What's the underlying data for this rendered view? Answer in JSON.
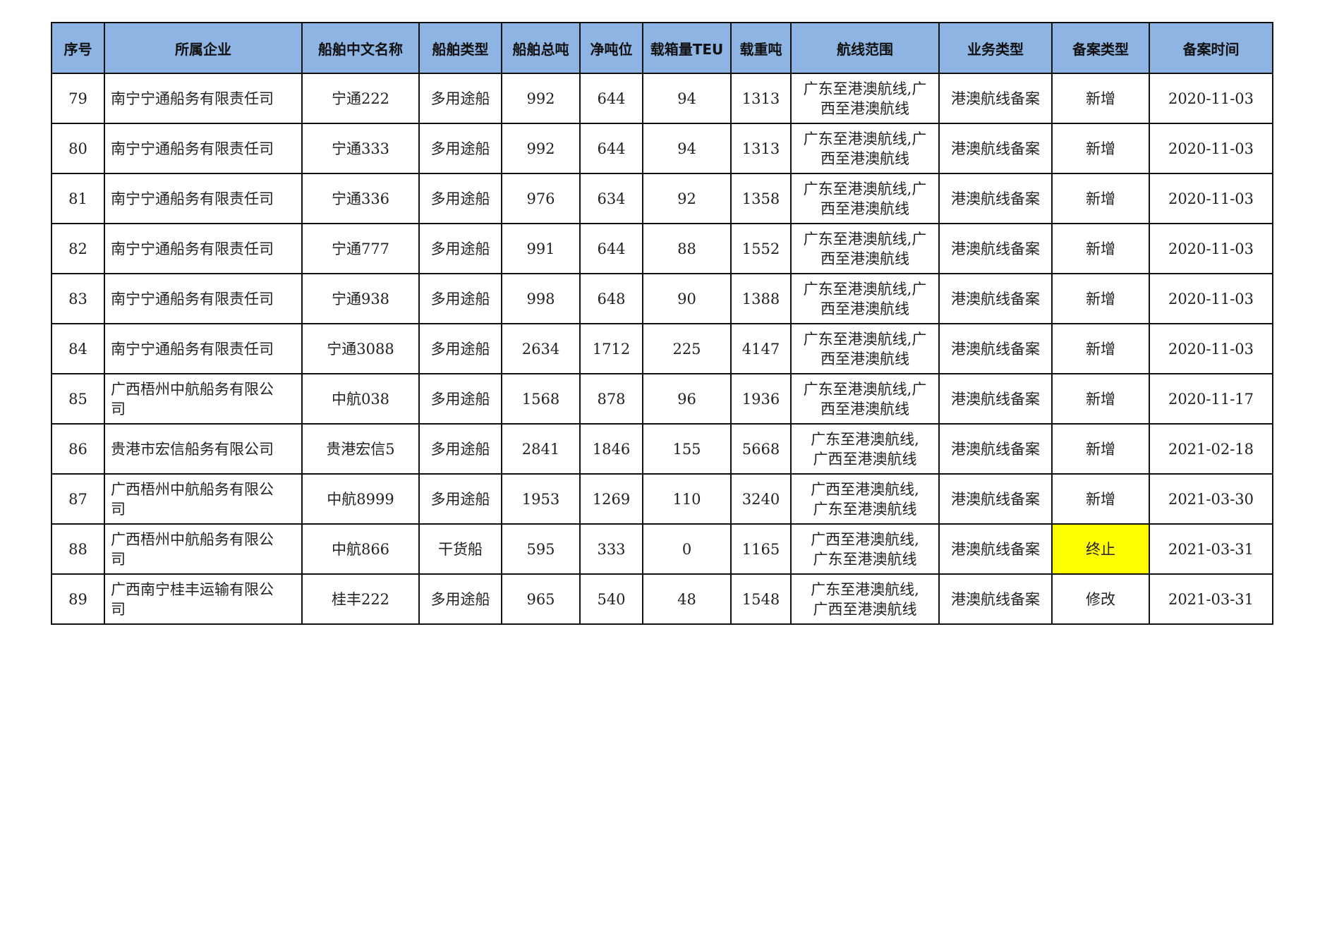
{
  "table": {
    "headers": [
      "序号",
      "所属企业",
      "船舶中文名称",
      "船舶类型",
      "船舶总吨",
      "净吨位",
      "载箱量TEU",
      "载重吨",
      "航线范围",
      "业务类型",
      "备案类型",
      "备案时间"
    ],
    "highlight_color": "#ffff00",
    "header_color": "#8db4e2",
    "rows": [
      {
        "cells": [
          "79",
          "南宁宁通船务有限责任司",
          "宁通222",
          "多用途船",
          "992",
          "644",
          "94",
          "1313",
          "广东至港澳航线,广\n西至港澳航线",
          "港澳航线备案",
          "新增",
          "2020-11-03"
        ]
      },
      {
        "cells": [
          "80",
          "南宁宁通船务有限责任司",
          "宁通333",
          "多用途船",
          "992",
          "644",
          "94",
          "1313",
          "广东至港澳航线,广\n西至港澳航线",
          "港澳航线备案",
          "新增",
          "2020-11-03"
        ]
      },
      {
        "cells": [
          "81",
          "南宁宁通船务有限责任司",
          "宁通336",
          "多用途船",
          "976",
          "634",
          "92",
          "1358",
          "广东至港澳航线,广\n西至港澳航线",
          "港澳航线备案",
          "新增",
          "2020-11-03"
        ]
      },
      {
        "cells": [
          "82",
          "南宁宁通船务有限责任司",
          "宁通777",
          "多用途船",
          "991",
          "644",
          "88",
          "1552",
          "广东至港澳航线,广\n西至港澳航线",
          "港澳航线备案",
          "新增",
          "2020-11-03"
        ]
      },
      {
        "cells": [
          "83",
          "南宁宁通船务有限责任司",
          "宁通938",
          "多用途船",
          "998",
          "648",
          "90",
          "1388",
          "广东至港澳航线,广\n西至港澳航线",
          "港澳航线备案",
          "新增",
          "2020-11-03"
        ]
      },
      {
        "cells": [
          "84",
          "南宁宁通船务有限责任司",
          "宁通3088",
          "多用途船",
          "2634",
          "1712",
          "225",
          "4147",
          "广东至港澳航线,广\n西至港澳航线",
          "港澳航线备案",
          "新增",
          "2020-11-03"
        ]
      },
      {
        "cells": [
          "85",
          "广西梧州中航船务有限公\n司",
          "中航038",
          "多用途船",
          "1568",
          "878",
          "96",
          "1936",
          "广东至港澳航线,广\n西至港澳航线",
          "港澳航线备案",
          "新增",
          "2020-11-17"
        ]
      },
      {
        "cells": [
          "86",
          "贵港市宏信船务有限公司",
          "贵港宏信5",
          "多用途船",
          "2841",
          "1846",
          "155",
          "5668",
          "广东至港澳航线,\n广西至港澳航线",
          "港澳航线备案",
          "新增",
          "2021-02-18"
        ]
      },
      {
        "cells": [
          "87",
          "广西梧州中航船务有限公\n司",
          "中航8999",
          "多用途船",
          "1953",
          "1269",
          "110",
          "3240",
          "广西至港澳航线,\n广东至港澳航线",
          "港澳航线备案",
          "新增",
          "2021-03-30"
        ]
      },
      {
        "cells": [
          "88",
          "广西梧州中航船务有限公\n司",
          "中航866",
          "干货船",
          "595",
          "333",
          "0",
          "1165",
          "广西至港澳航线,\n广东至港澳航线",
          "港澳航线备案",
          "终止",
          "2021-03-31"
        ],
        "highlight_col": 10
      },
      {
        "cells": [
          "89",
          "广西南宁桂丰运输有限公\n司",
          "桂丰222",
          "多用途船",
          "965",
          "540",
          "48",
          "1548",
          "广东至港澳航线,\n广西至港澳航线",
          "港澳航线备案",
          "修改",
          "2021-03-31"
        ]
      }
    ]
  }
}
